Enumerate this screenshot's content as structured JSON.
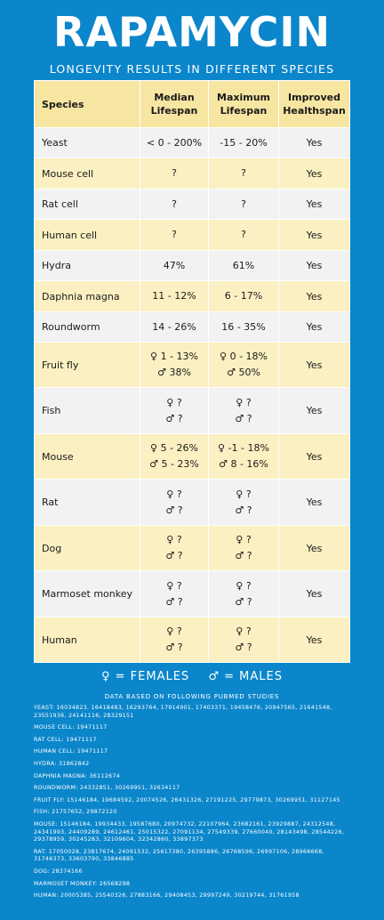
{
  "title": "RAPAMYCIN",
  "subtitle": "LONGEVITY RESULTS IN DIFFERENT SPECIES",
  "table": {
    "headers": [
      "Species",
      "Median\nLifespan",
      "Maximum\nLifespan",
      "Improved\nHealthspan"
    ],
    "rows": [
      {
        "species": "Yeast",
        "median": [
          "< 0 - 200%"
        ],
        "maximum": [
          "-15 - 20%"
        ],
        "health": "Yes"
      },
      {
        "species": "Mouse cell",
        "median": [
          "?"
        ],
        "maximum": [
          "?"
        ],
        "health": "Yes"
      },
      {
        "species": "Rat cell",
        "median": [
          "?"
        ],
        "maximum": [
          "?"
        ],
        "health": "Yes"
      },
      {
        "species": "Human cell",
        "median": [
          "?"
        ],
        "maximum": [
          "?"
        ],
        "health": "Yes"
      },
      {
        "species": "Hydra",
        "median": [
          "47%"
        ],
        "maximum": [
          "61%"
        ],
        "health": "Yes"
      },
      {
        "species": "Daphnia magna",
        "median": [
          "11 - 12%"
        ],
        "maximum": [
          "6 - 17%"
        ],
        "health": "Yes"
      },
      {
        "species": "Roundworm",
        "median": [
          "14 - 26%"
        ],
        "maximum": [
          "16 - 35%"
        ],
        "health": "Yes"
      },
      {
        "species": "Fruit fly",
        "median": [
          "♀ 1 - 13%",
          "♂ 38%"
        ],
        "maximum": [
          "♀ 0 - 18%",
          "♂ 50%"
        ],
        "health": "Yes"
      },
      {
        "species": "Fish",
        "median": [
          "♀ ?",
          "♂ ?"
        ],
        "maximum": [
          "♀ ?",
          "♂ ?"
        ],
        "health": "Yes"
      },
      {
        "species": "Mouse",
        "median": [
          "♀ 5 - 26%",
          "♂ 5 - 23%"
        ],
        "maximum": [
          "♀ -1 - 18%",
          "♂ 8 - 16%"
        ],
        "health": "Yes"
      },
      {
        "species": "Rat",
        "median": [
          "♀ ?",
          "♂ ?"
        ],
        "maximum": [
          "♀ ?",
          "♂ ?"
        ],
        "health": "Yes"
      },
      {
        "species": "Dog",
        "median": [
          "♀ ?",
          "♂ ?"
        ],
        "maximum": [
          "♀ ?",
          "♂ ?"
        ],
        "health": "Yes"
      },
      {
        "species": "Marmoset monkey",
        "median": [
          "♀ ?",
          "♂ ?"
        ],
        "maximum": [
          "♀ ?",
          "♂ ?"
        ],
        "health": "Yes"
      },
      {
        "species": "Human",
        "median": [
          "♀ ?",
          "♂ ?"
        ],
        "maximum": [
          "♀ ?",
          "♂ ?"
        ],
        "health": "Yes"
      }
    ]
  },
  "legend": {
    "females": "♀ = FEMALES",
    "males": "♂ = MALES"
  },
  "references_title": "DATA BASED ON FOLLOWING PUBMED STUDIES",
  "references": [
    "YEAST: 16034823, 16418483, 16293764, 17914901, 17403371, 19458476, 20947565, 21641548, 23551936, 24141116, 28329151",
    "MOUSE CELL: 19471117",
    "RAT CELL: 19471117",
    "HUMAN CELL: 19471117",
    "HYDRA: 31862842",
    "DAPHNIA MAGNA: 36112674",
    "ROUNDWORM: 24332851, 30269951, 32634117",
    "FRUIT FLY: 15146184, 19684592, 20074526, 26431326, 27191225, 29779873, 30269951, 31127145",
    "FISH: 21757652, 29872120",
    "MOUSE: 15146184, 19934433, 19587680, 20974732, 22107964, 23682161, 23929887, 24312548, 24341993, 24409289, 24612461, 25015322, 27091134, 27549339, 27660040, 28143498, 28544226, 29378959, 30245283, 32109604, 32342860, 33897373",
    "RAT: 17050028, 23817674, 24091532, 25617380, 26395886, 26768596, 26997106, 28966668, 31746373, 33603790, 33846885",
    "DOG: 28374166",
    "MARMOSET MONKEY: 26568298",
    "HUMAN: 20005385, 25540326, 27883166, 29408453, 29997249, 30219744, 31761958"
  ]
}
